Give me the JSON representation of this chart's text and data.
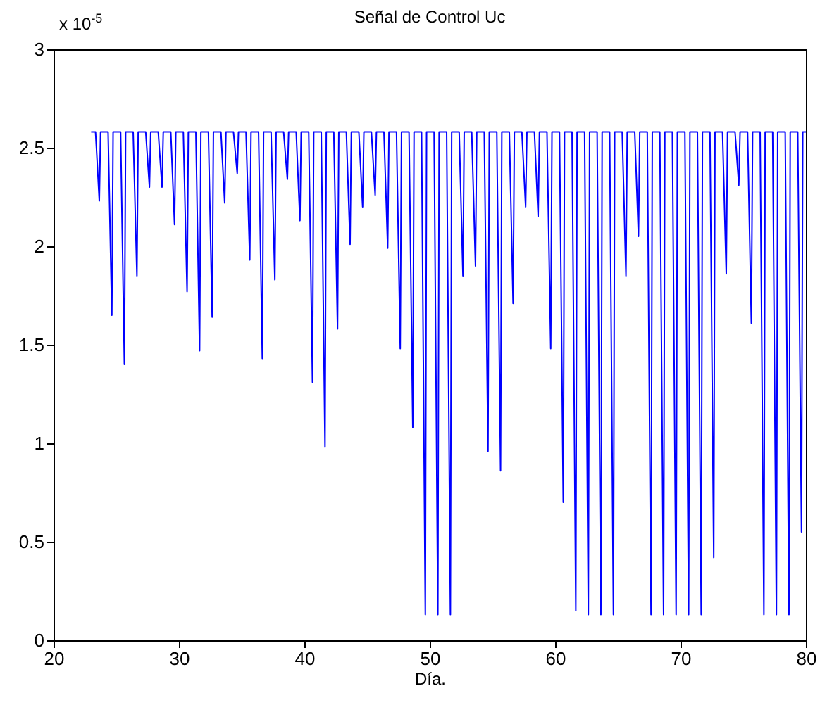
{
  "chart_data": {
    "type": "line",
    "title": "Señal de Control Uc",
    "xlabel": "Día.",
    "annotations": [
      "x 10$^{-5}$"
    ],
    "xlim": [
      20,
      80
    ],
    "ylim": [
      0,
      3
    ],
    "xticks": [
      20,
      30,
      40,
      50,
      60,
      70,
      80
    ],
    "yticks": [
      0,
      0.5,
      1,
      1.5,
      2,
      2.5,
      3
    ],
    "grid": false,
    "series": [
      {
        "color": "#0000ff",
        "x": [
          23,
          23.35,
          23.65,
          23.75,
          24.35,
          24.65,
          24.75,
          25.35,
          25.65,
          25.75,
          26.35,
          26.65,
          26.75,
          27.35,
          27.65,
          27.75,
          28.35,
          28.65,
          28.75,
          29.35,
          29.65,
          29.75,
          30.35,
          30.65,
          30.75,
          31.35,
          31.65,
          31.75,
          32.35,
          32.65,
          32.75,
          33.35,
          33.65,
          33.75,
          34.35,
          34.65,
          34.75,
          35.35,
          35.65,
          35.75,
          36.35,
          36.65,
          36.75,
          37.35,
          37.65,
          37.75,
          38.35,
          38.65,
          38.75,
          39.35,
          39.65,
          39.75,
          40.35,
          40.65,
          40.75,
          41.35,
          41.65,
          41.75,
          42.35,
          42.65,
          42.75,
          43.35,
          43.65,
          43.75,
          44.35,
          44.65,
          44.75,
          45.35,
          45.65,
          45.75,
          46.35,
          46.65,
          46.75,
          47.35,
          47.65,
          47.75,
          48.35,
          48.65,
          48.75,
          49.35,
          49.65,
          49.75,
          50.35,
          50.65,
          50.75,
          51.35,
          51.65,
          51.75,
          52.35,
          52.65,
          52.75,
          53.35,
          53.65,
          53.75,
          54.35,
          54.65,
          54.75,
          55.35,
          55.65,
          55.75,
          56.35,
          56.65,
          56.75,
          57.35,
          57.65,
          57.75,
          58.35,
          58.65,
          58.75,
          59.35,
          59.65,
          59.75,
          60.35,
          60.65,
          60.75,
          61.35,
          61.65,
          61.75,
          62.35,
          62.65,
          62.75,
          63.35,
          63.65,
          63.75,
          64.35,
          64.65,
          64.75,
          65.35,
          65.65,
          65.75,
          66.35,
          66.65,
          66.75,
          67.35,
          67.65,
          67.75,
          68.35,
          68.65,
          68.75,
          69.35,
          69.65,
          69.75,
          70.35,
          70.65,
          70.75,
          71.35,
          71.65,
          71.75,
          72.35,
          72.65,
          72.75,
          73.35,
          73.65,
          73.75,
          74.35,
          74.65,
          74.75,
          75.35,
          75.65,
          75.75,
          76.35,
          76.65,
          76.75,
          77.35,
          77.65,
          77.75,
          78.35,
          78.65,
          78.75,
          79.35,
          79.65,
          79.75,
          80
        ],
        "values": [
          2.58,
          2.58,
          2.23,
          2.58,
          2.58,
          1.65,
          2.58,
          2.58,
          1.4,
          2.58,
          2.58,
          1.85,
          2.58,
          2.58,
          2.3,
          2.58,
          2.58,
          2.3,
          2.58,
          2.58,
          2.11,
          2.58,
          2.58,
          1.77,
          2.58,
          2.58,
          1.47,
          2.58,
          2.58,
          1.64,
          2.58,
          2.58,
          2.22,
          2.58,
          2.58,
          2.37,
          2.58,
          2.58,
          1.93,
          2.58,
          2.58,
          1.43,
          2.58,
          2.58,
          1.83,
          2.58,
          2.58,
          2.34,
          2.58,
          2.58,
          2.13,
          2.58,
          2.58,
          1.31,
          2.58,
          2.58,
          0.98,
          2.58,
          2.58,
          1.58,
          2.58,
          2.58,
          2.01,
          2.58,
          2.58,
          2.2,
          2.58,
          2.58,
          2.26,
          2.58,
          2.58,
          1.99,
          2.58,
          2.58,
          1.48,
          2.58,
          2.58,
          1.08,
          2.58,
          2.58,
          0.13,
          2.58,
          2.58,
          0.13,
          2.58,
          2.58,
          0.13,
          2.58,
          2.58,
          1.85,
          2.58,
          2.58,
          1.9,
          2.58,
          2.58,
          0.96,
          2.58,
          2.58,
          0.86,
          2.58,
          2.58,
          1.71,
          2.58,
          2.58,
          2.2,
          2.58,
          2.58,
          2.15,
          2.58,
          2.58,
          1.48,
          2.58,
          2.58,
          0.7,
          2.58,
          2.58,
          0.15,
          2.58,
          2.58,
          0.13,
          2.58,
          2.58,
          0.13,
          2.58,
          2.58,
          0.13,
          2.58,
          2.58,
          1.85,
          2.58,
          2.58,
          2.05,
          2.58,
          2.58,
          0.13,
          2.58,
          2.58,
          0.13,
          2.58,
          2.58,
          0.13,
          2.58,
          2.58,
          0.13,
          2.58,
          2.58,
          0.13,
          2.58,
          2.58,
          0.42,
          2.58,
          2.58,
          1.86,
          2.58,
          2.58,
          2.31,
          2.58,
          2.58,
          1.61,
          2.58,
          2.58,
          0.13,
          2.58,
          2.58,
          0.13,
          2.58,
          2.58,
          0.13,
          2.58,
          2.58,
          0.55,
          2.58,
          2.58
        ]
      }
    ]
  }
}
